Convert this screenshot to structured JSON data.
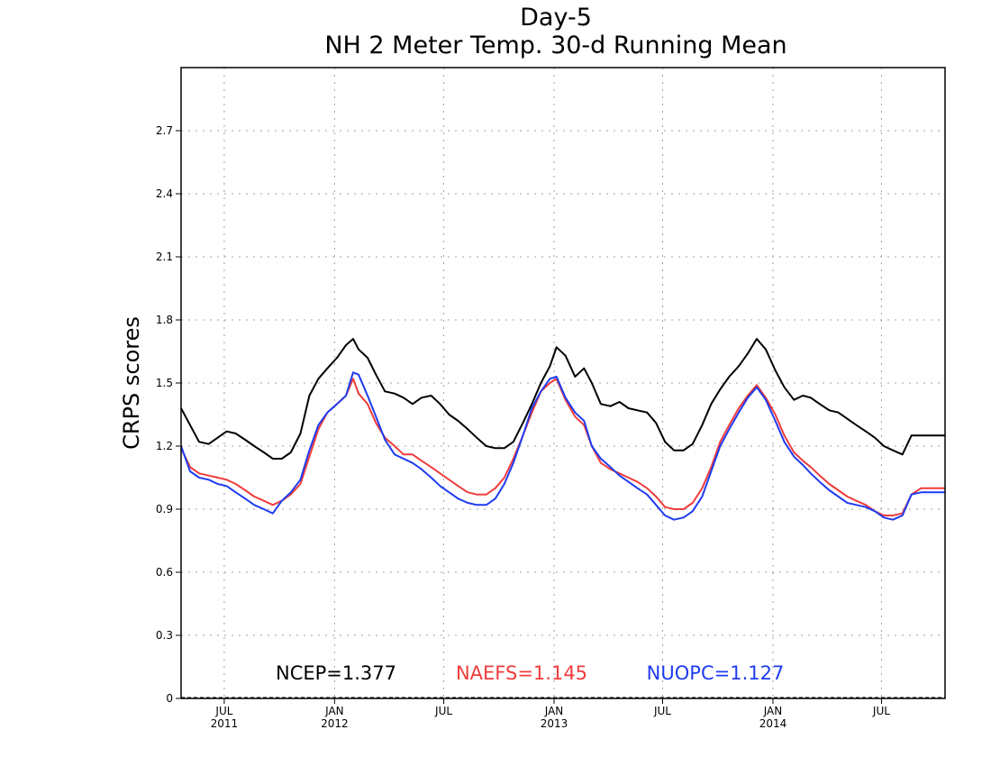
{
  "chart_data": {
    "type": "line",
    "title": "Day-5",
    "subtitle": "NH 2 Meter Temp. 30-d Running Mean",
    "ylabel": "CRPS scores",
    "xlabel": "",
    "ylim": [
      0,
      3.0
    ],
    "yticks": [
      0,
      0.3,
      0.6,
      0.9,
      1.2,
      1.5,
      1.8,
      2.1,
      2.4,
      2.7
    ],
    "ytick_labels": [
      "0",
      "0.3",
      "0.6",
      "0.9",
      "1.2",
      "1.5",
      "1.8",
      "2.1",
      "2.4",
      "2.7"
    ],
    "xlim": [
      "2011-04-20",
      "2014-10-15"
    ],
    "xticks": [
      {
        "date": "2011-07-01",
        "month": "JUL",
        "year": "2011"
      },
      {
        "date": "2012-01-01",
        "month": "JAN",
        "year": "2012"
      },
      {
        "date": "2012-07-01",
        "month": "JUL",
        "year": ""
      },
      {
        "date": "2013-01-01",
        "month": "JAN",
        "year": "2013"
      },
      {
        "date": "2013-07-01",
        "month": "JUL",
        "year": ""
      },
      {
        "date": "2014-01-01",
        "month": "JAN",
        "year": "2014"
      },
      {
        "date": "2014-07-01",
        "month": "JUL",
        "year": ""
      }
    ],
    "grid": true,
    "legend_position": "bottom",
    "series": [
      {
        "name": "NCEP",
        "legend": "NCEP=1.377",
        "color": "#000000",
        "x": [
          "2011-04-20",
          "2011-05-05",
          "2011-05-20",
          "2011-06-05",
          "2011-06-20",
          "2011-07-05",
          "2011-07-20",
          "2011-08-05",
          "2011-08-20",
          "2011-09-05",
          "2011-09-20",
          "2011-10-05",
          "2011-10-20",
          "2011-11-05",
          "2011-11-20",
          "2011-12-05",
          "2011-12-20",
          "2012-01-05",
          "2012-01-20",
          "2012-02-01",
          "2012-02-10",
          "2012-02-25",
          "2012-03-10",
          "2012-03-25",
          "2012-04-10",
          "2012-04-25",
          "2012-05-10",
          "2012-05-25",
          "2012-06-10",
          "2012-06-25",
          "2012-07-10",
          "2012-07-25",
          "2012-08-10",
          "2012-08-25",
          "2012-09-10",
          "2012-09-25",
          "2012-10-10",
          "2012-10-25",
          "2012-11-10",
          "2012-11-25",
          "2012-12-10",
          "2012-12-25",
          "2013-01-05",
          "2013-01-20",
          "2013-02-05",
          "2013-02-20",
          "2013-03-05",
          "2013-03-20",
          "2013-04-05",
          "2013-04-20",
          "2013-05-05",
          "2013-05-20",
          "2013-06-05",
          "2013-06-20",
          "2013-07-05",
          "2013-07-20",
          "2013-08-05",
          "2013-08-20",
          "2013-09-05",
          "2013-09-20",
          "2013-10-05",
          "2013-10-20",
          "2013-11-05",
          "2013-11-20",
          "2013-12-05",
          "2013-12-20",
          "2014-01-05",
          "2014-01-20",
          "2014-02-05",
          "2014-02-20",
          "2014-03-05",
          "2014-03-20",
          "2014-04-05",
          "2014-04-20",
          "2014-05-05",
          "2014-05-20",
          "2014-06-05",
          "2014-06-20",
          "2014-07-05",
          "2014-07-20",
          "2014-08-05",
          "2014-08-20",
          "2014-09-05",
          "2014-09-20",
          "2014-10-05",
          "2014-10-15"
        ],
        "y": [
          1.38,
          1.3,
          1.22,
          1.21,
          1.24,
          1.27,
          1.26,
          1.23,
          1.2,
          1.17,
          1.14,
          1.14,
          1.17,
          1.26,
          1.44,
          1.52,
          1.57,
          1.62,
          1.68,
          1.71,
          1.66,
          1.62,
          1.54,
          1.46,
          1.45,
          1.43,
          1.4,
          1.43,
          1.44,
          1.4,
          1.35,
          1.32,
          1.28,
          1.24,
          1.2,
          1.19,
          1.19,
          1.22,
          1.31,
          1.4,
          1.5,
          1.58,
          1.67,
          1.63,
          1.53,
          1.57,
          1.5,
          1.4,
          1.39,
          1.41,
          1.38,
          1.37,
          1.36,
          1.31,
          1.22,
          1.18,
          1.18,
          1.21,
          1.3,
          1.4,
          1.47,
          1.53,
          1.58,
          1.64,
          1.71,
          1.66,
          1.56,
          1.48,
          1.42,
          1.44,
          1.43,
          1.4,
          1.37,
          1.36,
          1.33,
          1.3,
          1.27,
          1.24,
          1.2,
          1.18,
          1.16,
          1.25,
          1.25,
          1.25,
          1.25,
          1.25
        ]
      },
      {
        "name": "NAEFS",
        "legend": "NAEFS=1.145",
        "color": "#f03c3c",
        "x": [
          "2011-04-20",
          "2011-05-05",
          "2011-05-20",
          "2011-06-05",
          "2011-06-20",
          "2011-07-05",
          "2011-07-20",
          "2011-08-05",
          "2011-08-20",
          "2011-09-05",
          "2011-09-20",
          "2011-10-05",
          "2011-10-20",
          "2011-11-05",
          "2011-11-20",
          "2011-12-05",
          "2011-12-20",
          "2012-01-05",
          "2012-01-20",
          "2012-02-01",
          "2012-02-10",
          "2012-02-25",
          "2012-03-10",
          "2012-03-25",
          "2012-04-10",
          "2012-04-25",
          "2012-05-10",
          "2012-05-25",
          "2012-06-10",
          "2012-06-25",
          "2012-07-10",
          "2012-07-25",
          "2012-08-10",
          "2012-08-25",
          "2012-09-10",
          "2012-09-25",
          "2012-10-10",
          "2012-10-25",
          "2012-11-10",
          "2012-11-25",
          "2012-12-10",
          "2012-12-25",
          "2013-01-05",
          "2013-01-20",
          "2013-02-05",
          "2013-02-20",
          "2013-03-05",
          "2013-03-20",
          "2013-04-05",
          "2013-04-20",
          "2013-05-05",
          "2013-05-20",
          "2013-06-05",
          "2013-06-20",
          "2013-07-05",
          "2013-07-20",
          "2013-08-05",
          "2013-08-20",
          "2013-09-05",
          "2013-09-20",
          "2013-10-05",
          "2013-10-20",
          "2013-11-05",
          "2013-11-20",
          "2013-12-05",
          "2013-12-20",
          "2014-01-05",
          "2014-01-20",
          "2014-02-05",
          "2014-02-20",
          "2014-03-05",
          "2014-03-20",
          "2014-04-05",
          "2014-04-20",
          "2014-05-05",
          "2014-05-20",
          "2014-06-05",
          "2014-06-20",
          "2014-07-05",
          "2014-07-20",
          "2014-08-05",
          "2014-08-20",
          "2014-09-05",
          "2014-09-20",
          "2014-10-05",
          "2014-10-15"
        ],
        "y": [
          1.19,
          1.1,
          1.07,
          1.06,
          1.05,
          1.04,
          1.02,
          0.99,
          0.96,
          0.94,
          0.92,
          0.94,
          0.97,
          1.02,
          1.15,
          1.28,
          1.36,
          1.4,
          1.44,
          1.52,
          1.45,
          1.4,
          1.31,
          1.24,
          1.2,
          1.16,
          1.16,
          1.13,
          1.1,
          1.07,
          1.04,
          1.01,
          0.98,
          0.97,
          0.97,
          1.0,
          1.05,
          1.14,
          1.25,
          1.36,
          1.46,
          1.5,
          1.52,
          1.42,
          1.34,
          1.3,
          1.2,
          1.12,
          1.09,
          1.07,
          1.05,
          1.03,
          1.0,
          0.96,
          0.91,
          0.9,
          0.9,
          0.93,
          1.0,
          1.1,
          1.22,
          1.3,
          1.38,
          1.44,
          1.49,
          1.43,
          1.35,
          1.25,
          1.17,
          1.13,
          1.1,
          1.06,
          1.02,
          0.99,
          0.96,
          0.94,
          0.92,
          0.89,
          0.87,
          0.87,
          0.88,
          0.97,
          1.0,
          1.0,
          1.0,
          1.0
        ]
      },
      {
        "name": "NUOPC",
        "legend": "NUOPC=1.127",
        "color": "#1e3cf0",
        "x": [
          "2011-04-20",
          "2011-05-05",
          "2011-05-20",
          "2011-06-05",
          "2011-06-20",
          "2011-07-05",
          "2011-07-20",
          "2011-08-05",
          "2011-08-20",
          "2011-09-05",
          "2011-09-20",
          "2011-10-05",
          "2011-10-20",
          "2011-11-05",
          "2011-11-20",
          "2011-12-05",
          "2011-12-20",
          "2012-01-05",
          "2012-01-20",
          "2012-02-01",
          "2012-02-10",
          "2012-02-25",
          "2012-03-10",
          "2012-03-25",
          "2012-04-10",
          "2012-04-25",
          "2012-05-10",
          "2012-05-25",
          "2012-06-10",
          "2012-06-25",
          "2012-07-10",
          "2012-07-25",
          "2012-08-10",
          "2012-08-25",
          "2012-09-10",
          "2012-09-25",
          "2012-10-10",
          "2012-10-25",
          "2012-11-10",
          "2012-11-25",
          "2012-12-10",
          "2012-12-25",
          "2013-01-05",
          "2013-01-20",
          "2013-02-05",
          "2013-02-20",
          "2013-03-05",
          "2013-03-20",
          "2013-04-05",
          "2013-04-20",
          "2013-05-05",
          "2013-05-20",
          "2013-06-05",
          "2013-06-20",
          "2013-07-05",
          "2013-07-20",
          "2013-08-05",
          "2013-08-20",
          "2013-09-05",
          "2013-09-20",
          "2013-10-05",
          "2013-10-20",
          "2013-11-05",
          "2013-11-20",
          "2013-12-05",
          "2013-12-20",
          "2014-01-05",
          "2014-01-20",
          "2014-02-05",
          "2014-02-20",
          "2014-03-05",
          "2014-03-20",
          "2014-04-05",
          "2014-04-20",
          "2014-05-05",
          "2014-05-20",
          "2014-06-05",
          "2014-06-20",
          "2014-07-05",
          "2014-07-20",
          "2014-08-05",
          "2014-08-20",
          "2014-09-05",
          "2014-09-20",
          "2014-10-05",
          "2014-10-15"
        ],
        "y": [
          1.2,
          1.08,
          1.05,
          1.04,
          1.02,
          1.01,
          0.98,
          0.95,
          0.92,
          0.9,
          0.88,
          0.94,
          0.98,
          1.04,
          1.18,
          1.3,
          1.36,
          1.4,
          1.44,
          1.55,
          1.54,
          1.44,
          1.34,
          1.23,
          1.16,
          1.14,
          1.12,
          1.09,
          1.05,
          1.01,
          0.98,
          0.95,
          0.93,
          0.92,
          0.92,
          0.95,
          1.02,
          1.12,
          1.25,
          1.38,
          1.46,
          1.52,
          1.53,
          1.43,
          1.36,
          1.32,
          1.2,
          1.14,
          1.1,
          1.06,
          1.03,
          1.0,
          0.97,
          0.92,
          0.87,
          0.85,
          0.86,
          0.89,
          0.96,
          1.08,
          1.2,
          1.28,
          1.36,
          1.43,
          1.48,
          1.42,
          1.32,
          1.22,
          1.15,
          1.11,
          1.07,
          1.03,
          0.99,
          0.96,
          0.93,
          0.92,
          0.91,
          0.89,
          0.86,
          0.85,
          0.87,
          0.97,
          0.98,
          0.98,
          0.98,
          0.98
        ]
      }
    ]
  }
}
